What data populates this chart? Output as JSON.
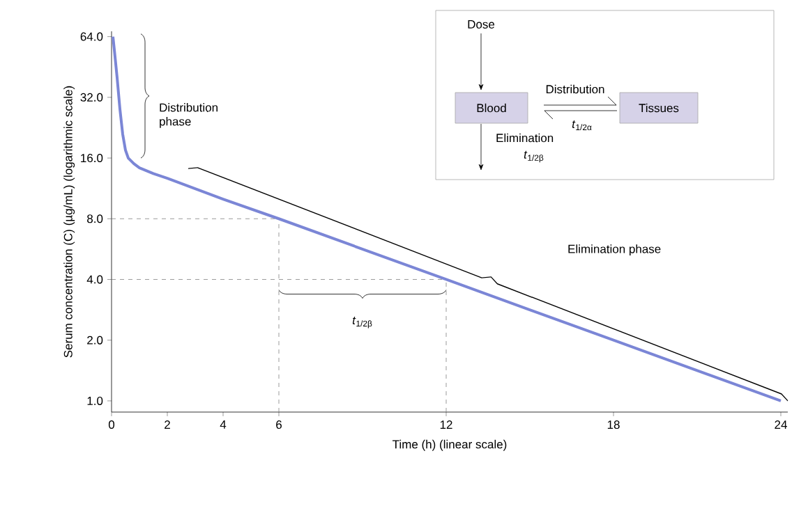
{
  "chart_data": {
    "type": "line",
    "xlabel": "Time (h) (linear scale)",
    "ylabel": "Serum concentration (C) (µg/mL) (logarithmic scale)",
    "x": [
      0.05,
      0.1,
      0.2,
      0.3,
      0.4,
      0.5,
      0.6,
      0.8,
      1,
      1.5,
      2,
      4,
      6,
      12,
      18,
      24
    ],
    "series": [
      {
        "color": "#7b86d6",
        "values": [
          64,
          55,
          40,
          28,
          21,
          17.5,
          16,
          15,
          14.3,
          13.4,
          12.7,
          10,
          8,
          4,
          2,
          1
        ]
      }
    ],
    "xlim": [
      0,
      24.25
    ],
    "ylim": [
      0.88,
      68
    ],
    "xticks": [
      0,
      2,
      4,
      6,
      12,
      18,
      24
    ],
    "yticks": [
      {
        "value": 1,
        "label": "1.0"
      },
      {
        "value": 2,
        "label": "2.0"
      },
      {
        "value": 4,
        "label": "4.0"
      },
      {
        "value": 8,
        "label": "8.0"
      },
      {
        "value": 16,
        "label": "16.0"
      },
      {
        "value": 32,
        "label": "32.0"
      },
      {
        "value": 64,
        "label": "64.0"
      }
    ],
    "log": "y",
    "grid": false,
    "line_style": "solid",
    "ref_lines": [
      {
        "axis": "y",
        "value": 8,
        "color": "#808080",
        "line_style": "dashed"
      },
      {
        "axis": "y",
        "value": 4,
        "color": "#808080",
        "line_style": "dashed"
      },
      {
        "axis": "x",
        "value": 6,
        "color": "#808080",
        "line_style": "dashed"
      },
      {
        "axis": "x",
        "value": 12,
        "color": "#808080",
        "line_style": "dashed"
      }
    ],
    "annotations": [
      "Distribution phase",
      "Elimination phase",
      "*t*$_{1/2β}$",
      "Dose",
      "Blood",
      "Distribution",
      "*t*$_{1/2α}$",
      "Tissues",
      "Elimination",
      "*t*$_{1/2β}$"
    ]
  }
}
